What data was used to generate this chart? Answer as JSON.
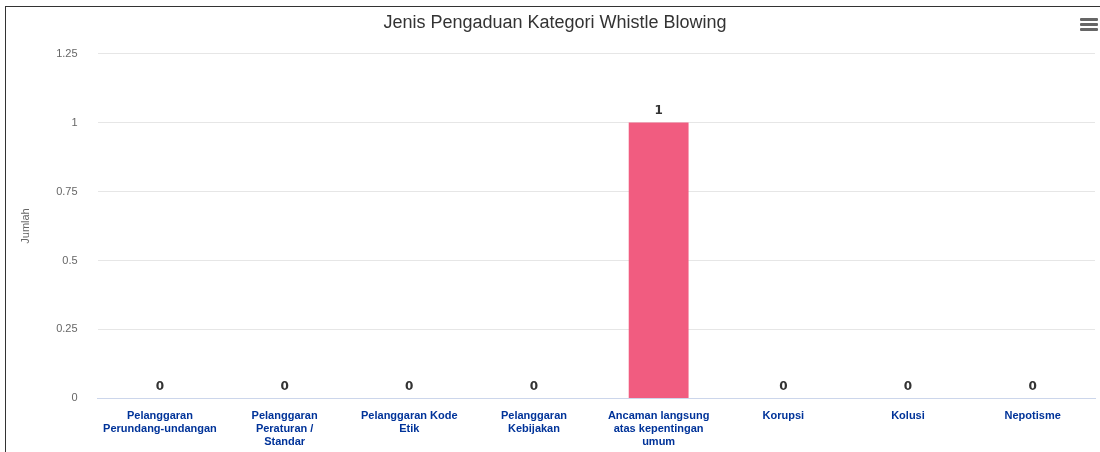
{
  "chart_data": {
    "type": "bar",
    "title": "Jenis Pengaduan Kategori Whistle Blowing",
    "ylabel": "Jumlah",
    "categories": [
      "Pelanggaran Perundang-undangan",
      "Pelanggaran Peraturan / Standar",
      "Pelanggaran Kode Etik",
      "Pelanggaran Kebijakan",
      "Ancaman langsung atas kepentingan umum",
      "Korupsi",
      "Kolusi",
      "Nepotisme"
    ],
    "values": [
      0,
      0,
      0,
      0,
      1,
      0,
      0,
      0
    ],
    "color": "#f15c80",
    "ylim": [
      0,
      1.25
    ],
    "yticks": [
      0,
      0.25,
      0.5,
      0.75,
      1,
      1.25
    ],
    "grid": "y",
    "legend": false,
    "data_labels": true
  }
}
